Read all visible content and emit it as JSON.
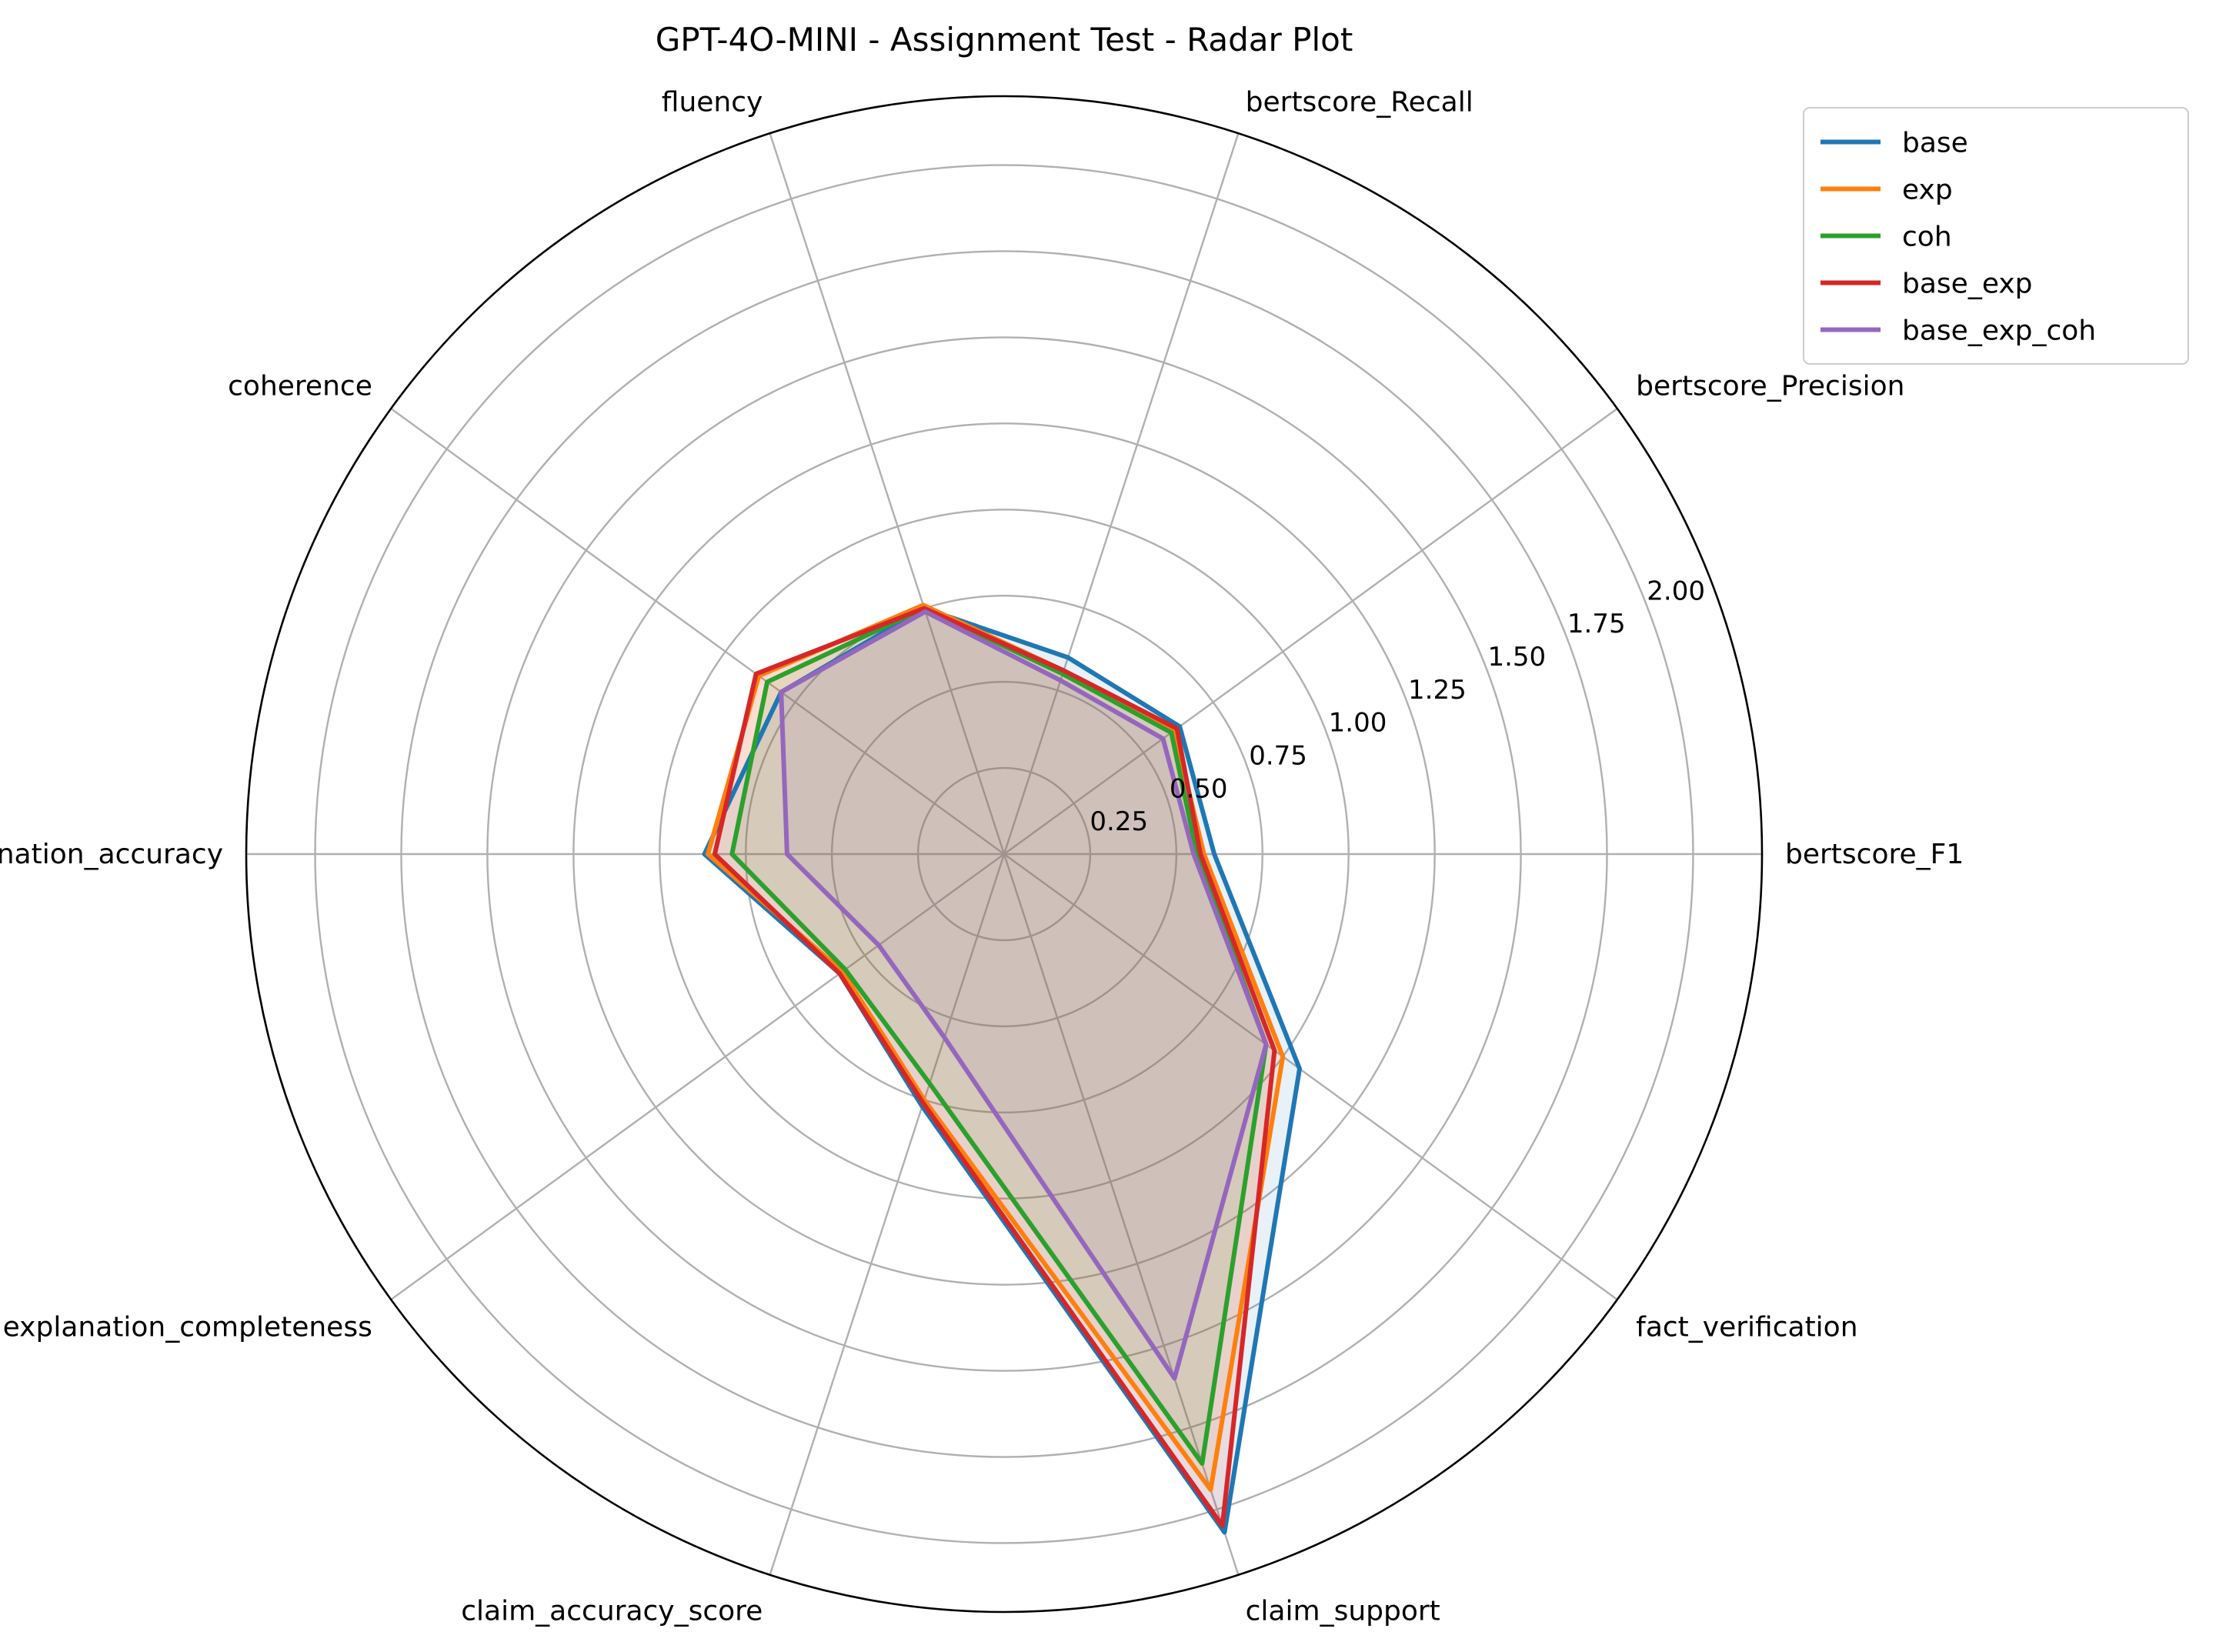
{
  "chart_data": {
    "type": "radar",
    "title": "GPT-4O-MINI - Assignment Test - Radar Plot",
    "axes": [
      "bertscore_F1",
      "bertscore_Precision",
      "bertscore_Recall",
      "fluency",
      "coherence",
      "explanation_accuracy",
      "explanation_completeness",
      "claim_accuracy_score",
      "claim_support",
      "fact_verification"
    ],
    "rlim": [
      0,
      2.2
    ],
    "rticks": [
      0.25,
      0.5,
      0.75,
      1.0,
      1.25,
      1.5,
      1.75,
      2.0
    ],
    "rtick_labels": [
      "0.25",
      "0.50",
      "0.75",
      "1.00",
      "1.25",
      "1.50",
      "1.75",
      "2.00"
    ],
    "grid": true,
    "legend_position": "upper-right-outside",
    "series": [
      {
        "name": "base",
        "color": "#1f77b4",
        "values": [
          0.61,
          0.63,
          0.6,
          0.75,
          0.8,
          0.87,
          0.59,
          0.77,
          2.07,
          1.06
        ]
      },
      {
        "name": "exp",
        "color": "#ff7f0e",
        "values": [
          0.58,
          0.61,
          0.56,
          0.76,
          0.88,
          0.86,
          0.58,
          0.75,
          1.94,
          1.0
        ]
      },
      {
        "name": "coh",
        "color": "#2ca02c",
        "values": [
          0.56,
          0.6,
          0.55,
          0.75,
          0.85,
          0.79,
          0.57,
          0.7,
          1.86,
          0.94
        ]
      },
      {
        "name": "base_exp",
        "color": "#d62728",
        "values": [
          0.57,
          0.62,
          0.56,
          0.75,
          0.89,
          0.84,
          0.59,
          0.76,
          2.05,
          0.97
        ]
      },
      {
        "name": "base_exp_coh",
        "color": "#9467bd",
        "values": [
          0.55,
          0.57,
          0.53,
          0.74,
          0.8,
          0.63,
          0.45,
          0.56,
          1.6,
          0.94
        ]
      }
    ]
  }
}
